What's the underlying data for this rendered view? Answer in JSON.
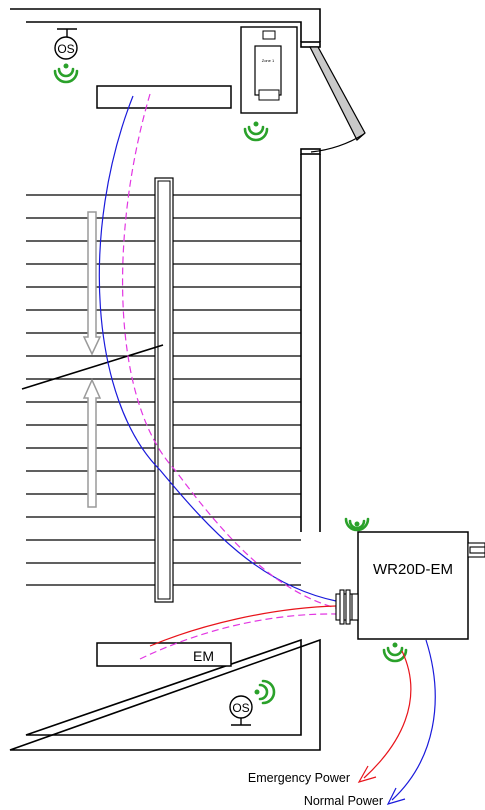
{
  "sensors": {
    "top_left": "OS",
    "bottom": "OS"
  },
  "switch_plate": {
    "label": "Zone 1"
  },
  "fixtures": {
    "emergency": "EM"
  },
  "controller": {
    "label": "WR20D-EM"
  },
  "legend": {
    "emergency": "Emergency Power",
    "normal": "Normal Power"
  },
  "colors": {
    "wall": "#000000",
    "emergency_wire": "#e8141b",
    "normal_wire": "#1a1adb",
    "dashed_wire": "#e236e2",
    "wireless_icon": "#2aa12a",
    "arrow": "#9a9a9a"
  }
}
